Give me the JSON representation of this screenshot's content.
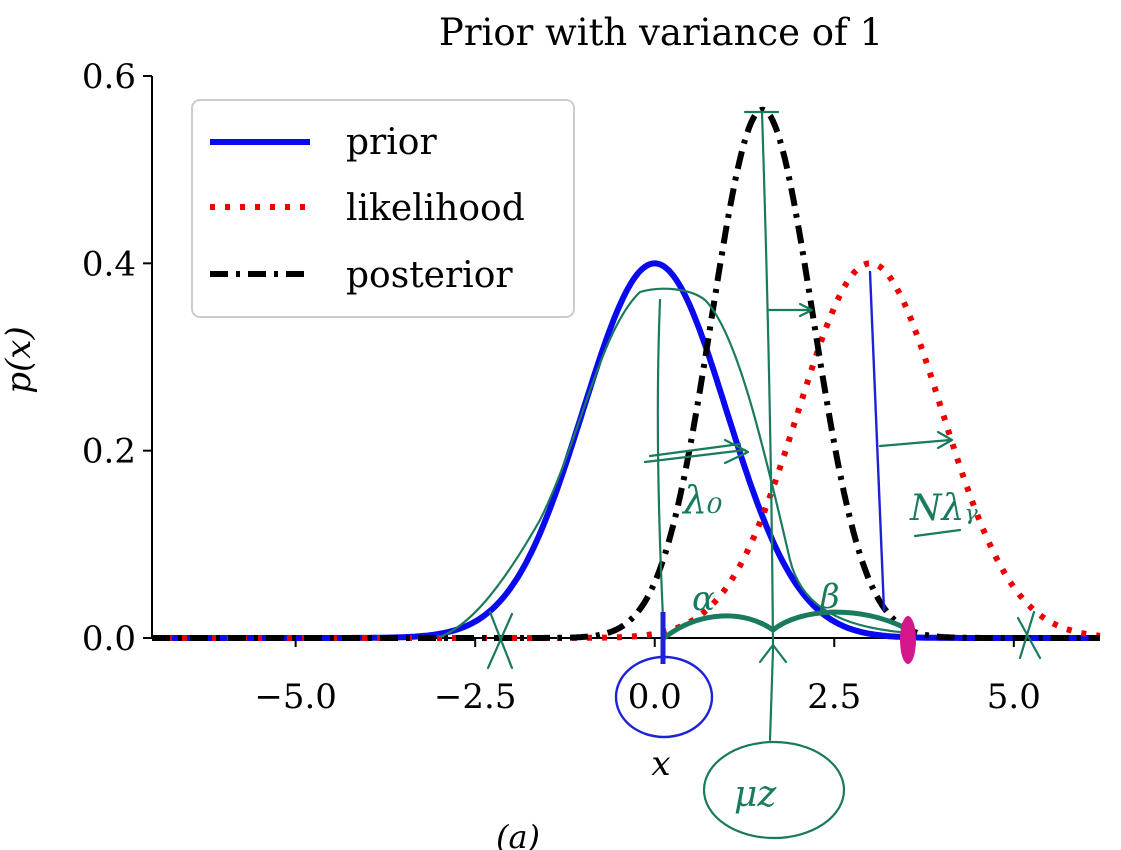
{
  "chart_data": {
    "type": "line",
    "title": "Prior with variance of 1",
    "xlabel": "x",
    "ylabel": "p(x)",
    "xlim": [
      -7,
      6.2
    ],
    "ylim": [
      0,
      0.6
    ],
    "xticks": [
      -5.0,
      -2.5,
      0.0,
      2.5,
      5.0
    ],
    "xtick_labels": [
      "−5.0",
      "−2.5",
      "0.0",
      "2.5",
      "5.0"
    ],
    "yticks": [
      0.0,
      0.2,
      0.4,
      0.6
    ],
    "ytick_labels": [
      "0.0",
      "0.2",
      "0.4",
      "0.6"
    ],
    "legend_position": "top-left",
    "series": [
      {
        "name": "prior",
        "style": "solid",
        "color": "#0a0af0",
        "mean": 0.0,
        "sd": 1.0,
        "peak": 0.4
      },
      {
        "name": "likelihood",
        "style": "dotted",
        "color": "#ee0000",
        "mean": 3.0,
        "sd": 1.0,
        "peak": 0.4
      },
      {
        "name": "posterior",
        "style": "dashdot",
        "color": "#000000",
        "mean": 1.5,
        "sd": 0.7071,
        "peak": 0.564
      }
    ],
    "panel_caption": "(a)",
    "annotations": {
      "lambda0": "λ₀",
      "n_lambda_y": "Nλᵧ",
      "alpha": "α",
      "beta": "β",
      "mu_z": "μz"
    }
  },
  "colors": {
    "ink_green": "#1a7a5e",
    "ink_blue": "#1e22d6",
    "ink_magenta": "#d4178a"
  }
}
